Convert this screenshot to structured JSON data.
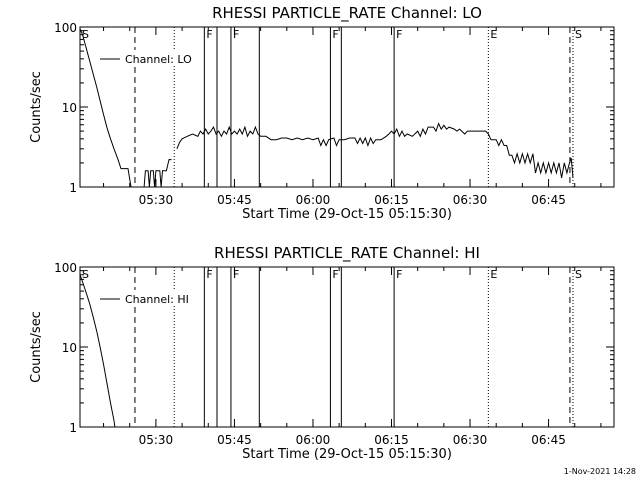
{
  "chart_data": [
    {
      "type": "line",
      "title": "RHESSI PARTICLE_RATE Channel: LO",
      "xlabel": "Start Time (29-Oct-15 05:15:30)",
      "ylabel": "Counts/sec",
      "y_scale": "log",
      "ylim": [
        1,
        100
      ],
      "y_ticks": [
        1,
        10,
        100
      ],
      "y_tick_labels": [
        "1",
        "10",
        "100"
      ],
      "xlim": [
        "05:15:30",
        "06:57:30"
      ],
      "x_ticks": [
        "05:30",
        "05:45",
        "06:00",
        "06:15",
        "06:30",
        "06:45"
      ],
      "legend": {
        "entry": "Channel: LO",
        "placement": "top-left"
      },
      "events": [
        {
          "label": "S",
          "time": "05:15:30",
          "style": "none"
        },
        {
          "label": "",
          "time": "05:26:00",
          "style": "dashed"
        },
        {
          "label": "",
          "time": "05:33:30",
          "style": "dotted"
        },
        {
          "label": "F",
          "time": "05:39:15",
          "style": "solid"
        },
        {
          "label": "",
          "time": "05:41:40",
          "style": "solid"
        },
        {
          "label": "F",
          "time": "05:44:20",
          "style": "solid"
        },
        {
          "label": "",
          "time": "05:49:45",
          "style": "solid"
        },
        {
          "label": "F",
          "time": "06:03:20",
          "style": "solid"
        },
        {
          "label": "",
          "time": "06:05:25",
          "style": "solid"
        },
        {
          "label": "F",
          "time": "06:15:30",
          "style": "solid"
        },
        {
          "label": "E",
          "time": "06:33:30",
          "style": "dotted"
        },
        {
          "label": "",
          "time": "06:49:05",
          "style": "dashed"
        },
        {
          "label": "S",
          "time": "06:49:40",
          "style": "dotted"
        }
      ],
      "series": [
        {
          "name": "Channel: LO",
          "segments": [
            [
              [
                "05:15:30",
                95
              ],
              [
                "05:16:00",
                80
              ],
              [
                "05:16:40",
                55
              ],
              [
                "05:17:20",
                38
              ],
              [
                "05:18:00",
                26
              ],
              [
                "05:18:40",
                18
              ],
              [
                "05:19:20",
                12
              ],
              [
                "05:20:00",
                8
              ],
              [
                "05:20:40",
                5.5
              ],
              [
                "05:21:20",
                4
              ],
              [
                "05:22:00",
                3
              ],
              [
                "05:22:40",
                2.3
              ],
              [
                "05:23:20",
                1.7
              ],
              [
                "05:24:00",
                1.7
              ],
              [
                "05:24:40",
                1.7
              ],
              [
                "05:25:15",
                1
              ]
            ],
            [
              [
                "05:27:45",
                1
              ],
              [
                "05:28:00",
                1.6
              ],
              [
                "05:28:30",
                1.6
              ],
              [
                "05:28:45",
                1
              ],
              [
                "05:29:00",
                1.6
              ],
              [
                "05:29:30",
                1.6
              ],
              [
                "05:29:45",
                1
              ],
              [
                "05:30:00",
                1.6
              ],
              [
                "05:30:45",
                1.6
              ],
              [
                "05:31:00",
                1
              ],
              [
                "05:31:15",
                1.6
              ],
              [
                "05:32:00",
                1.6
              ],
              [
                "05:32:30",
                2.2
              ],
              [
                "05:33:00",
                2.2
              ]
            ],
            [
              [
                "05:34:00",
                3
              ],
              [
                "05:34:30",
                3.6
              ],
              [
                "05:35:00",
                4
              ],
              [
                "05:36:00",
                4.3
              ],
              [
                "05:37:00",
                4.6
              ],
              [
                "05:38:00",
                4.3
              ],
              [
                "05:38:30",
                5
              ],
              [
                "05:39:00",
                4.6
              ],
              [
                "05:39:30",
                5.3
              ],
              [
                "05:40:00",
                4.6
              ],
              [
                "05:40:30",
                5
              ],
              [
                "05:41:00",
                5.6
              ],
              [
                "05:41:30",
                4.6
              ],
              [
                "05:42:00",
                5
              ],
              [
                "05:42:30",
                4.3
              ],
              [
                "05:43:00",
                5
              ],
              [
                "05:43:30",
                4.6
              ],
              [
                "05:44:00",
                5.6
              ],
              [
                "05:44:30",
                4.6
              ],
              [
                "05:45:00",
                5
              ],
              [
                "05:45:30",
                4.6
              ],
              [
                "05:46:00",
                5.3
              ],
              [
                "05:46:30",
                4.6
              ],
              [
                "05:47:00",
                5.6
              ],
              [
                "05:47:30",
                4.3
              ],
              [
                "05:48:00",
                5
              ],
              [
                "05:48:30",
                4.6
              ],
              [
                "05:49:00",
                5.6
              ],
              [
                "05:49:30",
                4.6
              ],
              [
                "05:50:00",
                4.3
              ],
              [
                "05:51:00",
                4.3
              ],
              [
                "05:52:00",
                3.9
              ],
              [
                "05:53:00",
                3.9
              ],
              [
                "05:54:00",
                4.1
              ],
              [
                "05:55:00",
                4.1
              ],
              [
                "05:56:00",
                3.9
              ],
              [
                "05:57:00",
                4.1
              ],
              [
                "05:58:00",
                3.9
              ],
              [
                "05:59:00",
                4.1
              ],
              [
                "06:00:00",
                3.9
              ],
              [
                "06:01:00",
                4.1
              ],
              [
                "06:01:30",
                3.3
              ],
              [
                "06:02:00",
                3.9
              ],
              [
                "06:02:30",
                3.3
              ],
              [
                "06:03:00",
                3.9
              ],
              [
                "06:04:00",
                4.1
              ],
              [
                "06:04:30",
                3.3
              ],
              [
                "06:05:00",
                3.9
              ],
              [
                "06:06:00",
                3.9
              ],
              [
                "06:07:00",
                4.1
              ],
              [
                "06:08:00",
                4.1
              ],
              [
                "06:08:30",
                3.5
              ],
              [
                "06:09:00",
                4.1
              ],
              [
                "06:09:30",
                3.5
              ],
              [
                "06:10:00",
                4.1
              ],
              [
                "06:10:30",
                3.3
              ],
              [
                "06:11:00",
                4.1
              ],
              [
                "06:11:30",
                3.5
              ],
              [
                "06:12:00",
                3.9
              ],
              [
                "06:13:00",
                3.9
              ],
              [
                "06:14:00",
                4.3
              ],
              [
                "06:14:30",
                4.6
              ],
              [
                "06:15:00",
                5
              ],
              [
                "06:15:30",
                4.6
              ],
              [
                "06:16:00",
                5.3
              ],
              [
                "06:16:30",
                4.3
              ],
              [
                "06:17:00",
                5
              ],
              [
                "06:17:30",
                4.3
              ],
              [
                "06:18:00",
                4.6
              ],
              [
                "06:19:00",
                4.3
              ],
              [
                "06:20:00",
                5
              ],
              [
                "06:20:30",
                4.3
              ],
              [
                "06:21:00",
                5.3
              ],
              [
                "06:21:30",
                4.6
              ],
              [
                "06:22:00",
                5.6
              ],
              [
                "06:23:00",
                5.6
              ],
              [
                "06:23:30",
                5
              ],
              [
                "06:24:00",
                6.2
              ],
              [
                "06:24:30",
                5.3
              ],
              [
                "06:25:00",
                5.9
              ],
              [
                "06:25:30",
                5.3
              ],
              [
                "06:26:00",
                5.6
              ],
              [
                "06:27:00",
                5.3
              ],
              [
                "06:27:30",
                5
              ],
              [
                "06:28:00",
                5.3
              ],
              [
                "06:29:00",
                4.6
              ],
              [
                "06:29:30",
                5
              ],
              [
                "06:33:00",
                5
              ],
              [
                "06:33:30",
                4.6
              ],
              [
                "06:34:00",
                3.9
              ],
              [
                "06:35:00",
                3.9
              ],
              [
                "06:35:30",
                3.3
              ],
              [
                "06:36:00",
                3.9
              ],
              [
                "06:36:30",
                3.3
              ],
              [
                "06:37:00",
                3.3
              ],
              [
                "06:37:30",
                2.5
              ],
              [
                "06:38:00",
                2.5
              ],
              [
                "06:38:30",
                2.0
              ],
              [
                "06:39:00",
                2.6
              ],
              [
                "06:39:30",
                2.0
              ],
              [
                "06:40:00",
                2.6
              ],
              [
                "06:40:30",
                2.0
              ],
              [
                "06:41:00",
                2.6
              ],
              [
                "06:41:30",
                2.0
              ],
              [
                "06:42:00",
                2.6
              ],
              [
                "06:42:30",
                1.5
              ],
              [
                "06:43:00",
                2.0
              ],
              [
                "06:43:30",
                1.5
              ],
              [
                "06:44:00",
                2.0
              ],
              [
                "06:44:30",
                1.5
              ],
              [
                "06:45:00",
                2.0
              ],
              [
                "06:45:30",
                1.5
              ],
              [
                "06:46:00",
                2.0
              ],
              [
                "06:46:30",
                1.5
              ],
              [
                "06:47:00",
                2.0
              ],
              [
                "06:47:30",
                1.3
              ],
              [
                "06:48:00",
                2.0
              ],
              [
                "06:48:30",
                1.5
              ],
              [
                "06:49:00",
                2.0
              ],
              [
                "06:49:20",
                2.3
              ],
              [
                "06:49:40",
                1.3
              ]
            ]
          ]
        }
      ]
    },
    {
      "type": "line",
      "title": "RHESSI PARTICLE_RATE Channel: HI",
      "xlabel": "Start Time (29-Oct-15 05:15:30)",
      "ylabel": "Counts/sec",
      "y_scale": "log",
      "ylim": [
        1,
        100
      ],
      "y_ticks": [
        1,
        10,
        100
      ],
      "y_tick_labels": [
        "1",
        "10",
        "100"
      ],
      "xlim": [
        "05:15:30",
        "06:57:30"
      ],
      "x_ticks": [
        "05:30",
        "05:45",
        "06:00",
        "06:15",
        "06:30",
        "06:45"
      ],
      "legend": {
        "entry": "Channel: HI",
        "placement": "top-left"
      },
      "events": [
        {
          "label": "S",
          "time": "05:15:30",
          "style": "none"
        },
        {
          "label": "",
          "time": "05:26:00",
          "style": "dashed"
        },
        {
          "label": "",
          "time": "05:33:30",
          "style": "dotted"
        },
        {
          "label": "F",
          "time": "05:39:15",
          "style": "solid"
        },
        {
          "label": "",
          "time": "05:41:40",
          "style": "solid"
        },
        {
          "label": "F",
          "time": "05:44:20",
          "style": "solid"
        },
        {
          "label": "",
          "time": "05:49:45",
          "style": "solid"
        },
        {
          "label": "F",
          "time": "06:03:20",
          "style": "solid"
        },
        {
          "label": "",
          "time": "06:05:25",
          "style": "solid"
        },
        {
          "label": "F",
          "time": "06:15:30",
          "style": "solid"
        },
        {
          "label": "E",
          "time": "06:33:30",
          "style": "dotted"
        },
        {
          "label": "",
          "time": "06:49:05",
          "style": "dashed"
        },
        {
          "label": "S",
          "time": "06:49:40",
          "style": "dotted"
        }
      ],
      "series": [
        {
          "name": "Channel: HI",
          "segments": [
            [
              [
                "05:15:30",
                80
              ],
              [
                "05:16:00",
                65
              ],
              [
                "05:16:40",
                48
              ],
              [
                "05:17:20",
                35
              ],
              [
                "05:18:00",
                24
              ],
              [
                "05:18:40",
                16
              ],
              [
                "05:19:20",
                10
              ],
              [
                "05:20:00",
                6
              ],
              [
                "05:20:40",
                3.5
              ],
              [
                "05:21:20",
                2
              ],
              [
                "05:22:00",
                1.2
              ],
              [
                "05:22:10",
                1
              ]
            ]
          ]
        }
      ]
    }
  ],
  "footer": {
    "stamp": "1-Nov-2021 14:28"
  }
}
